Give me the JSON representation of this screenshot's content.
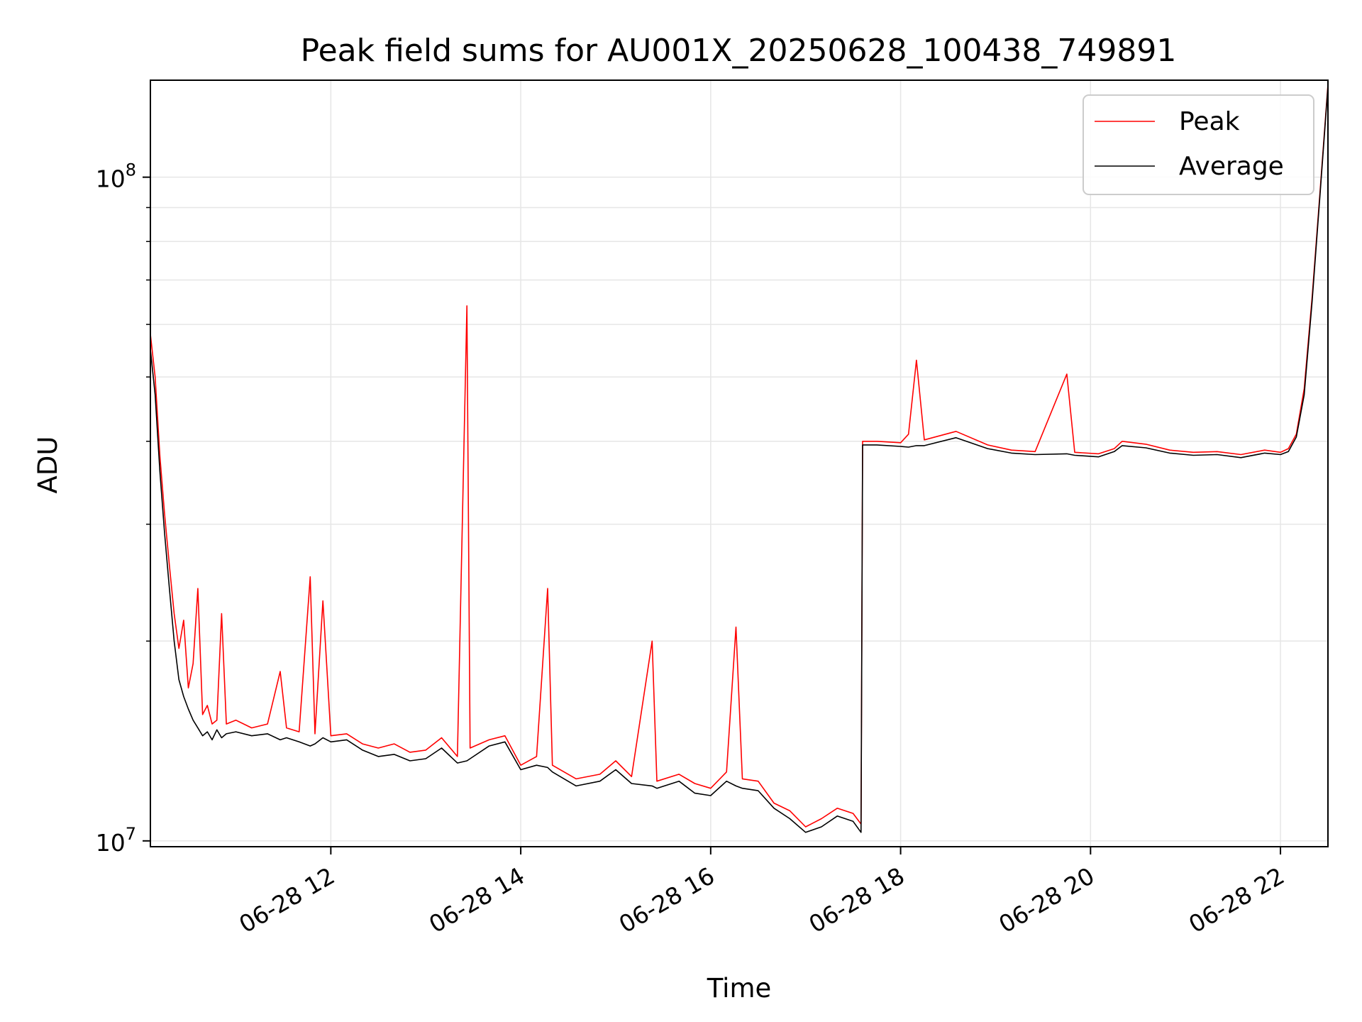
{
  "chart_data": {
    "type": "line",
    "title": "Peak field sums for AU001X_20250628_100438_749891",
    "xlabel": "Time",
    "ylabel": "ADU",
    "yscale": "log",
    "ylim": [
      9800000,
      140000000
    ],
    "xlim": [
      "2025-06-28 10:06",
      "2025-06-28 22:30"
    ],
    "grid": true,
    "legend_position": "top-right",
    "x_ticks": [
      {
        "value": "2025-06-28 12:00",
        "label": "06-28 12"
      },
      {
        "value": "2025-06-28 14:00",
        "label": "06-28 14"
      },
      {
        "value": "2025-06-28 16:00",
        "label": "06-28 16"
      },
      {
        "value": "2025-06-28 18:00",
        "label": "06-28 18"
      },
      {
        "value": "2025-06-28 20:00",
        "label": "06-28 20"
      },
      {
        "value": "2025-06-28 22:00",
        "label": "06-28 22"
      }
    ],
    "y_ticks": [
      {
        "value": 10000000,
        "base": "10",
        "exp": "7"
      },
      {
        "value": 100000000,
        "base": "10",
        "exp": "8"
      }
    ],
    "series": [
      {
        "name": "Peak",
        "color": "#ff0000",
        "points": [
          [
            "2025-06-28 10:06",
            58000000
          ],
          [
            "2025-06-28 10:09",
            50000000
          ],
          [
            "2025-06-28 10:12",
            38000000
          ],
          [
            "2025-06-28 10:15",
            31000000
          ],
          [
            "2025-06-28 10:18",
            26000000
          ],
          [
            "2025-06-28 10:21",
            22000000
          ],
          [
            "2025-06-28 10:24",
            19500000
          ],
          [
            "2025-06-28 10:27",
            21500000
          ],
          [
            "2025-06-28 10:30",
            17000000
          ],
          [
            "2025-06-28 10:33",
            18500000
          ],
          [
            "2025-06-28 10:36",
            24000000
          ],
          [
            "2025-06-28 10:39",
            15500000
          ],
          [
            "2025-06-28 10:42",
            16000000
          ],
          [
            "2025-06-28 10:45",
            15000000
          ],
          [
            "2025-06-28 10:48",
            15200000
          ],
          [
            "2025-06-28 10:51",
            22000000
          ],
          [
            "2025-06-28 10:54",
            15000000
          ],
          [
            "2025-06-28 11:00",
            15200000
          ],
          [
            "2025-06-28 11:10",
            14800000
          ],
          [
            "2025-06-28 11:20",
            15000000
          ],
          [
            "2025-06-28 11:28",
            18000000
          ],
          [
            "2025-06-28 11:32",
            14800000
          ],
          [
            "2025-06-28 11:40",
            14600000
          ],
          [
            "2025-06-28 11:47",
            25000000
          ],
          [
            "2025-06-28 11:50",
            14500000
          ],
          [
            "2025-06-28 11:55",
            23000000
          ],
          [
            "2025-06-28 12:00",
            14400000
          ],
          [
            "2025-06-28 12:10",
            14500000
          ],
          [
            "2025-06-28 12:20",
            14000000
          ],
          [
            "2025-06-28 12:30",
            13800000
          ],
          [
            "2025-06-28 12:40",
            14000000
          ],
          [
            "2025-06-28 12:50",
            13600000
          ],
          [
            "2025-06-28 13:00",
            13700000
          ],
          [
            "2025-06-28 13:10",
            14300000
          ],
          [
            "2025-06-28 13:20",
            13400000
          ],
          [
            "2025-06-28 13:26",
            64000000
          ],
          [
            "2025-06-28 13:28",
            13800000
          ],
          [
            "2025-06-28 13:40",
            14200000
          ],
          [
            "2025-06-28 13:50",
            14400000
          ],
          [
            "2025-06-28 14:00",
            13000000
          ],
          [
            "2025-06-28 14:10",
            13400000
          ],
          [
            "2025-06-28 14:17",
            24000000
          ],
          [
            "2025-06-28 14:20",
            13000000
          ],
          [
            "2025-06-28 14:35",
            12400000
          ],
          [
            "2025-06-28 14:50",
            12600000
          ],
          [
            "2025-06-28 15:00",
            13200000
          ],
          [
            "2025-06-28 15:10",
            12500000
          ],
          [
            "2025-06-28 15:23",
            20000000
          ],
          [
            "2025-06-28 15:26",
            12300000
          ],
          [
            "2025-06-28 15:40",
            12600000
          ],
          [
            "2025-06-28 15:50",
            12200000
          ],
          [
            "2025-06-28 16:00",
            12000000
          ],
          [
            "2025-06-28 16:10",
            12700000
          ],
          [
            "2025-06-28 16:16",
            21000000
          ],
          [
            "2025-06-28 16:20",
            12400000
          ],
          [
            "2025-06-28 16:30",
            12300000
          ],
          [
            "2025-06-28 16:40",
            11400000
          ],
          [
            "2025-06-28 16:50",
            11100000
          ],
          [
            "2025-06-28 17:00",
            10500000
          ],
          [
            "2025-06-28 17:10",
            10800000
          ],
          [
            "2025-06-28 17:20",
            11200000
          ],
          [
            "2025-06-28 17:30",
            11000000
          ],
          [
            "2025-06-28 17:35",
            10600000
          ],
          [
            "2025-06-28 17:36",
            40000000
          ],
          [
            "2025-06-28 17:45",
            40000000
          ],
          [
            "2025-06-28 18:00",
            39800000
          ],
          [
            "2025-06-28 18:05",
            41000000
          ],
          [
            "2025-06-28 18:10",
            53000000
          ],
          [
            "2025-06-28 18:15",
            40200000
          ],
          [
            "2025-06-28 18:35",
            41400000
          ],
          [
            "2025-06-28 18:55",
            39500000
          ],
          [
            "2025-06-28 19:10",
            38800000
          ],
          [
            "2025-06-28 19:25",
            38600000
          ],
          [
            "2025-06-28 19:45",
            50500000
          ],
          [
            "2025-06-28 19:50",
            38500000
          ],
          [
            "2025-06-28 20:05",
            38300000
          ],
          [
            "2025-06-28 20:15",
            39000000
          ],
          [
            "2025-06-28 20:20",
            40000000
          ],
          [
            "2025-06-28 20:35",
            39600000
          ],
          [
            "2025-06-28 20:50",
            38800000
          ],
          [
            "2025-06-28 21:05",
            38500000
          ],
          [
            "2025-06-28 21:20",
            38600000
          ],
          [
            "2025-06-28 21:35",
            38200000
          ],
          [
            "2025-06-28 21:50",
            38800000
          ],
          [
            "2025-06-28 22:00",
            38500000
          ],
          [
            "2025-06-28 22:05",
            39000000
          ],
          [
            "2025-06-28 22:10",
            41000000
          ],
          [
            "2025-06-28 22:15",
            48000000
          ],
          [
            "2025-06-28 22:20",
            66000000
          ],
          [
            "2025-06-28 22:25",
            95000000
          ],
          [
            "2025-06-28 22:30",
            138000000
          ]
        ]
      },
      {
        "name": "Average",
        "color": "#000000",
        "points": [
          [
            "2025-06-28 10:06",
            55000000
          ],
          [
            "2025-06-28 10:09",
            47000000
          ],
          [
            "2025-06-28 10:12",
            36000000
          ],
          [
            "2025-06-28 10:15",
            29000000
          ],
          [
            "2025-06-28 10:18",
            24000000
          ],
          [
            "2025-06-28 10:21",
            20000000
          ],
          [
            "2025-06-28 10:24",
            17500000
          ],
          [
            "2025-06-28 10:27",
            16500000
          ],
          [
            "2025-06-28 10:30",
            15800000
          ],
          [
            "2025-06-28 10:33",
            15200000
          ],
          [
            "2025-06-28 10:36",
            14800000
          ],
          [
            "2025-06-28 10:39",
            14400000
          ],
          [
            "2025-06-28 10:42",
            14600000
          ],
          [
            "2025-06-28 10:45",
            14200000
          ],
          [
            "2025-06-28 10:48",
            14700000
          ],
          [
            "2025-06-28 10:51",
            14300000
          ],
          [
            "2025-06-28 10:54",
            14500000
          ],
          [
            "2025-06-28 11:00",
            14600000
          ],
          [
            "2025-06-28 11:10",
            14400000
          ],
          [
            "2025-06-28 11:20",
            14500000
          ],
          [
            "2025-06-28 11:28",
            14200000
          ],
          [
            "2025-06-28 11:32",
            14300000
          ],
          [
            "2025-06-28 11:40",
            14100000
          ],
          [
            "2025-06-28 11:47",
            13900000
          ],
          [
            "2025-06-28 11:50",
            14000000
          ],
          [
            "2025-06-28 11:55",
            14300000
          ],
          [
            "2025-06-28 12:00",
            14100000
          ],
          [
            "2025-06-28 12:10",
            14200000
          ],
          [
            "2025-06-28 12:20",
            13700000
          ],
          [
            "2025-06-28 12:30",
            13400000
          ],
          [
            "2025-06-28 12:40",
            13500000
          ],
          [
            "2025-06-28 12:50",
            13200000
          ],
          [
            "2025-06-28 13:00",
            13300000
          ],
          [
            "2025-06-28 13:10",
            13800000
          ],
          [
            "2025-06-28 13:20",
            13100000
          ],
          [
            "2025-06-28 13:26",
            13200000
          ],
          [
            "2025-06-28 13:28",
            13300000
          ],
          [
            "2025-06-28 13:40",
            13900000
          ],
          [
            "2025-06-28 13:50",
            14100000
          ],
          [
            "2025-06-28 14:00",
            12800000
          ],
          [
            "2025-06-28 14:10",
            13000000
          ],
          [
            "2025-06-28 14:17",
            12900000
          ],
          [
            "2025-06-28 14:20",
            12700000
          ],
          [
            "2025-06-28 14:35",
            12100000
          ],
          [
            "2025-06-28 14:50",
            12300000
          ],
          [
            "2025-06-28 15:00",
            12800000
          ],
          [
            "2025-06-28 15:10",
            12200000
          ],
          [
            "2025-06-28 15:23",
            12100000
          ],
          [
            "2025-06-28 15:26",
            12000000
          ],
          [
            "2025-06-28 15:40",
            12300000
          ],
          [
            "2025-06-28 15:50",
            11800000
          ],
          [
            "2025-06-28 16:00",
            11700000
          ],
          [
            "2025-06-28 16:10",
            12300000
          ],
          [
            "2025-06-28 16:16",
            12100000
          ],
          [
            "2025-06-28 16:20",
            12000000
          ],
          [
            "2025-06-28 16:30",
            11900000
          ],
          [
            "2025-06-28 16:40",
            11200000
          ],
          [
            "2025-06-28 16:50",
            10800000
          ],
          [
            "2025-06-28 17:00",
            10300000
          ],
          [
            "2025-06-28 17:10",
            10500000
          ],
          [
            "2025-06-28 17:20",
            10900000
          ],
          [
            "2025-06-28 17:30",
            10700000
          ],
          [
            "2025-06-28 17:35",
            10300000
          ],
          [
            "2025-06-28 17:36",
            39500000
          ],
          [
            "2025-06-28 17:45",
            39500000
          ],
          [
            "2025-06-28 18:00",
            39300000
          ],
          [
            "2025-06-28 18:05",
            39200000
          ],
          [
            "2025-06-28 18:10",
            39400000
          ],
          [
            "2025-06-28 18:15",
            39400000
          ],
          [
            "2025-06-28 18:35",
            40500000
          ],
          [
            "2025-06-28 18:55",
            39000000
          ],
          [
            "2025-06-28 19:10",
            38400000
          ],
          [
            "2025-06-28 19:25",
            38200000
          ],
          [
            "2025-06-28 19:45",
            38300000
          ],
          [
            "2025-06-28 19:50",
            38100000
          ],
          [
            "2025-06-28 20:05",
            37900000
          ],
          [
            "2025-06-28 20:15",
            38600000
          ],
          [
            "2025-06-28 20:20",
            39400000
          ],
          [
            "2025-06-28 20:35",
            39100000
          ],
          [
            "2025-06-28 20:50",
            38400000
          ],
          [
            "2025-06-28 21:05",
            38100000
          ],
          [
            "2025-06-28 21:20",
            38200000
          ],
          [
            "2025-06-28 21:35",
            37800000
          ],
          [
            "2025-06-28 21:50",
            38400000
          ],
          [
            "2025-06-28 22:00",
            38200000
          ],
          [
            "2025-06-28 22:05",
            38600000
          ],
          [
            "2025-06-28 22:10",
            40600000
          ],
          [
            "2025-06-28 22:15",
            47000000
          ],
          [
            "2025-06-28 22:20",
            65000000
          ],
          [
            "2025-06-28 22:25",
            94000000
          ],
          [
            "2025-06-28 22:30",
            137000000
          ]
        ]
      }
    ]
  }
}
